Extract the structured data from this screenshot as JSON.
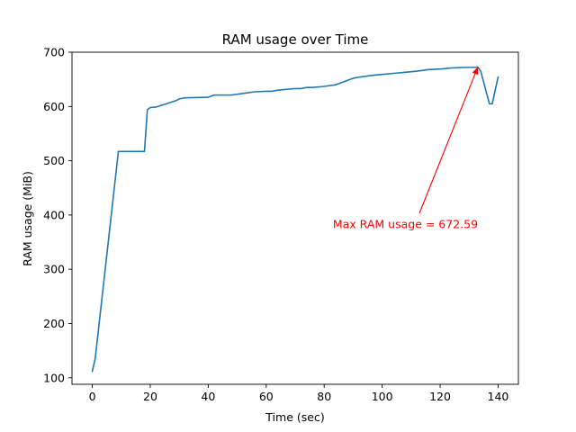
{
  "chart_data": {
    "type": "line",
    "title": "RAM usage over Time",
    "xlabel": "Time (sec)",
    "ylabel": "RAM usage (MiB)",
    "xlim": [
      -7,
      147
    ],
    "ylim": [
      88,
      700
    ],
    "xticks": [
      0,
      20,
      40,
      60,
      80,
      100,
      120,
      140
    ],
    "yticks": [
      100,
      200,
      300,
      400,
      500,
      600,
      700
    ],
    "grid": false,
    "line_color": "#1f77b4",
    "series": [
      {
        "x": [
          0,
          1,
          9,
          18,
          19,
          20,
          22,
          25,
          29,
          30,
          32,
          40,
          42,
          48,
          52,
          56,
          60,
          62,
          64,
          66,
          68,
          70,
          72,
          74,
          76,
          80,
          84,
          86,
          88,
          90,
          92,
          96,
          100,
          104,
          108,
          112,
          116,
          120,
          124,
          128,
          132,
          133,
          134,
          137,
          138,
          139,
          140
        ],
        "y": [
          112,
          135,
          517,
          517,
          594,
          598,
          599,
          604,
          611,
          614,
          616,
          617,
          621,
          621,
          624,
          627,
          628,
          628,
          630,
          631,
          632,
          633,
          633,
          635,
          635,
          637,
          640,
          644,
          648,
          652,
          654,
          657,
          659,
          661,
          663,
          665,
          668,
          669,
          671,
          672,
          672,
          672.59,
          665,
          605,
          605,
          630,
          654
        ]
      }
    ],
    "annotation": {
      "text": "Max RAM usage = 672.59",
      "color": "#ff0000",
      "point": [
        133,
        672.59
      ],
      "text_pos": [
        83,
        376
      ]
    }
  }
}
